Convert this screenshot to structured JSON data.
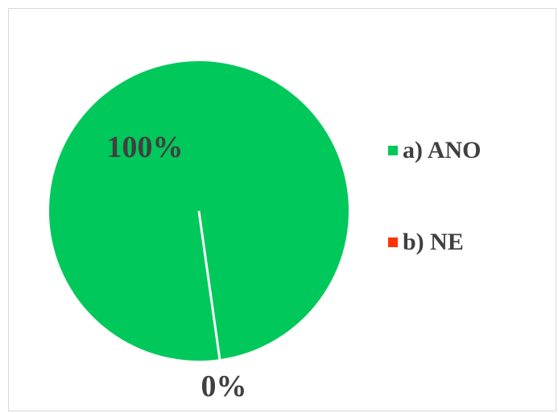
{
  "chart_data": {
    "type": "pie",
    "categories": [
      "a) ANO",
      "b) NE"
    ],
    "values": [
      100,
      0
    ],
    "data_labels": [
      "100%",
      "0%"
    ],
    "colors": [
      "#00c85a",
      "#ff3300"
    ],
    "legend_position": "right",
    "title": ""
  }
}
